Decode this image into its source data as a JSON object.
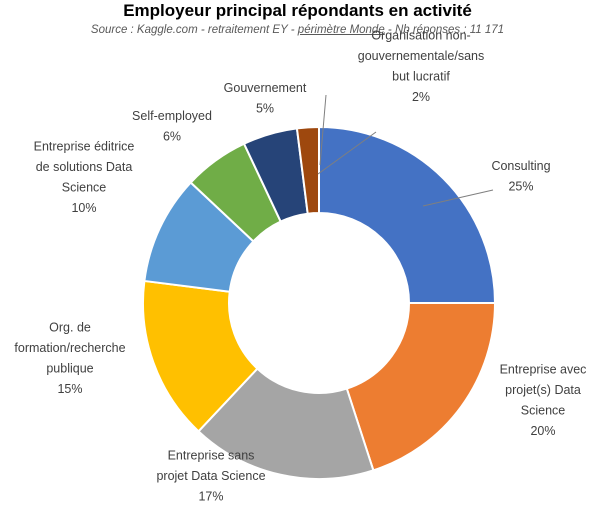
{
  "chart_data": {
    "type": "pie",
    "title": "Employeur principal répondants en activité",
    "subtitle": {
      "prefix": "Source : Kaggle.com - retraitement EY - ",
      "scope": "périmètre Monde",
      "suffix": " - Nb réponses : 11 171"
    },
    "slices": [
      {
        "label": [
          "Consulting"
        ],
        "pct_label": "25%",
        "value": 25,
        "color": "#4472C4"
      },
      {
        "label": [
          "Entreprise avec",
          "projet(s) Data",
          "Science"
        ],
        "pct_label": "20%",
        "value": 20,
        "color": "#ED7D31"
      },
      {
        "label": [
          "Entreprise sans",
          "projet Data Science"
        ],
        "pct_label": "17%",
        "value": 17,
        "color": "#A5A5A5"
      },
      {
        "label": [
          "Org. de",
          "formation/recherche",
          "publique"
        ],
        "pct_label": "15%",
        "value": 15,
        "color": "#FFC000"
      },
      {
        "label": [
          "Entreprise éditrice",
          "de solutions Data",
          "Science"
        ],
        "pct_label": "10%",
        "value": 10,
        "color": "#5B9BD5"
      },
      {
        "label": [
          "Self-employed"
        ],
        "pct_label": "6%",
        "value": 6,
        "color": "#70AD47"
      },
      {
        "label": [
          "Gouvernement"
        ],
        "pct_label": "5%",
        "value": 5,
        "color": "#264478"
      },
      {
        "label": [
          "Organisation non-",
          "gouvernementale/sans",
          "but lucratif"
        ],
        "pct_label": "2%",
        "value": 2,
        "color": "#9E480E"
      }
    ]
  }
}
